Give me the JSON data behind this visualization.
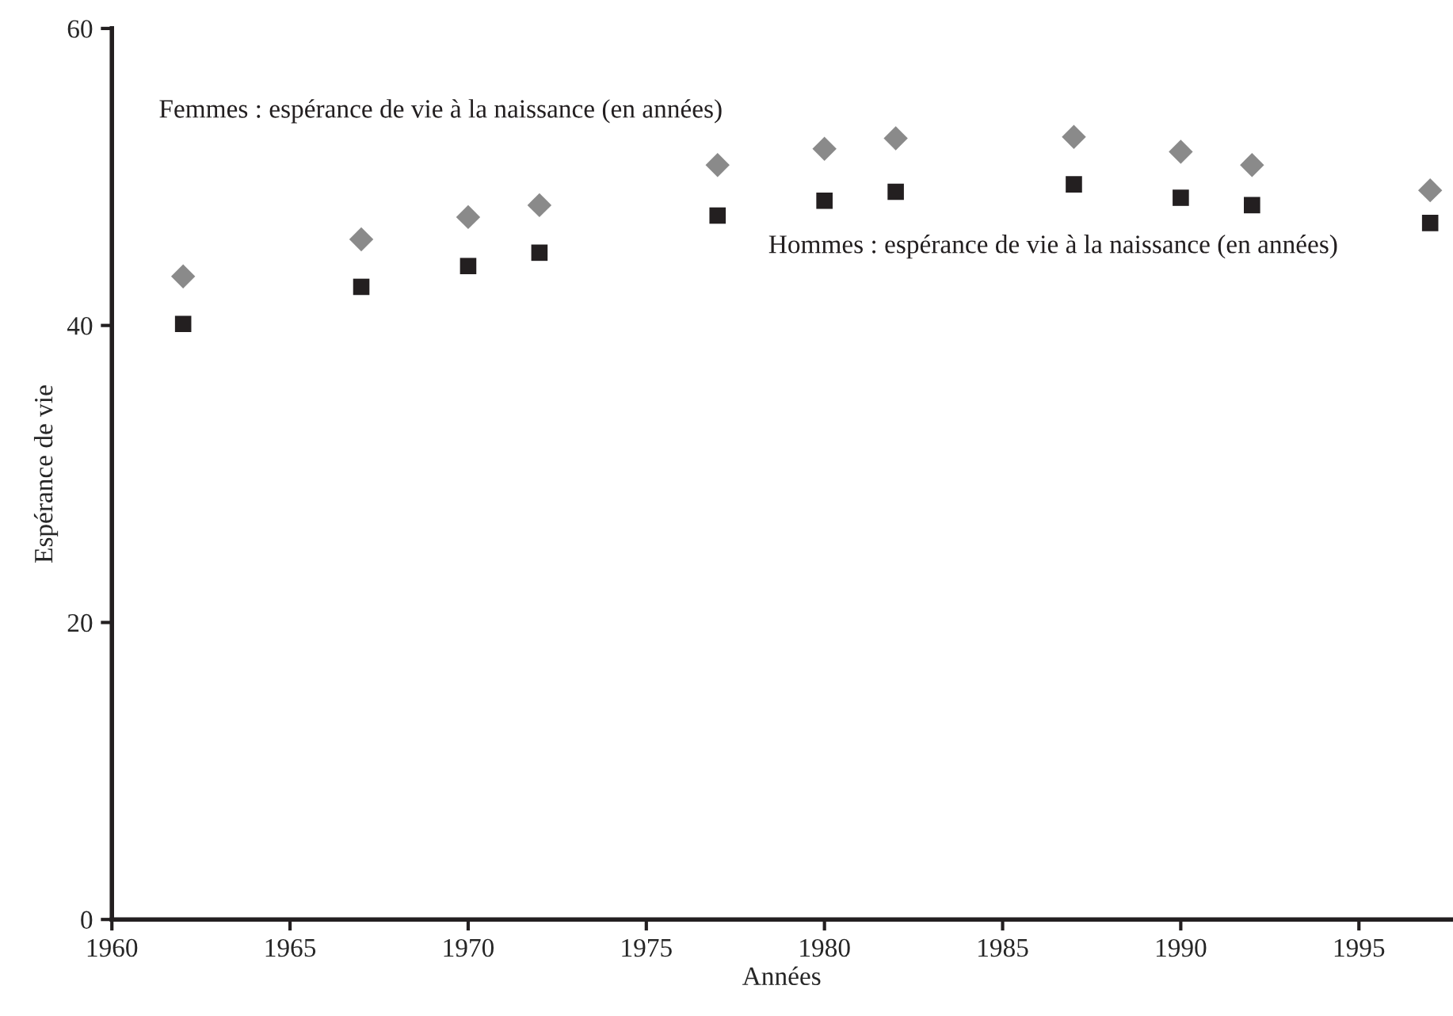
{
  "chart_data": {
    "type": "scatter",
    "xlabel": "Années",
    "ylabel": "Espérance de vie",
    "x": [
      1962,
      1967,
      1970,
      1972,
      1977,
      1980,
      1982,
      1987,
      1990,
      1992,
      1997
    ],
    "series": [
      {
        "name": "Femmes : espérance de vie à la naissance (en années)",
        "color": "#8a8a8a",
        "marker": "diamond",
        "values": [
          43.3,
          45.8,
          47.3,
          48.1,
          50.8,
          51.9,
          52.6,
          52.7,
          51.7,
          50.8,
          49.1
        ]
      },
      {
        "name": "Hommes : espérance de vie à la naissance (en années)",
        "color": "#231f20",
        "marker": "square",
        "values": [
          40.1,
          42.6,
          44.0,
          44.9,
          47.4,
          48.4,
          49.0,
          49.5,
          48.6,
          48.1,
          46.9
        ]
      }
    ],
    "xlim": [
      1960,
      1997.6
    ],
    "xticks": [
      1960,
      1965,
      1970,
      1975,
      1980,
      1985,
      1990,
      1995
    ],
    "ylim": [
      0,
      60
    ],
    "yticks": [
      0,
      20,
      40,
      60
    ],
    "grid": false,
    "legend": false
  }
}
